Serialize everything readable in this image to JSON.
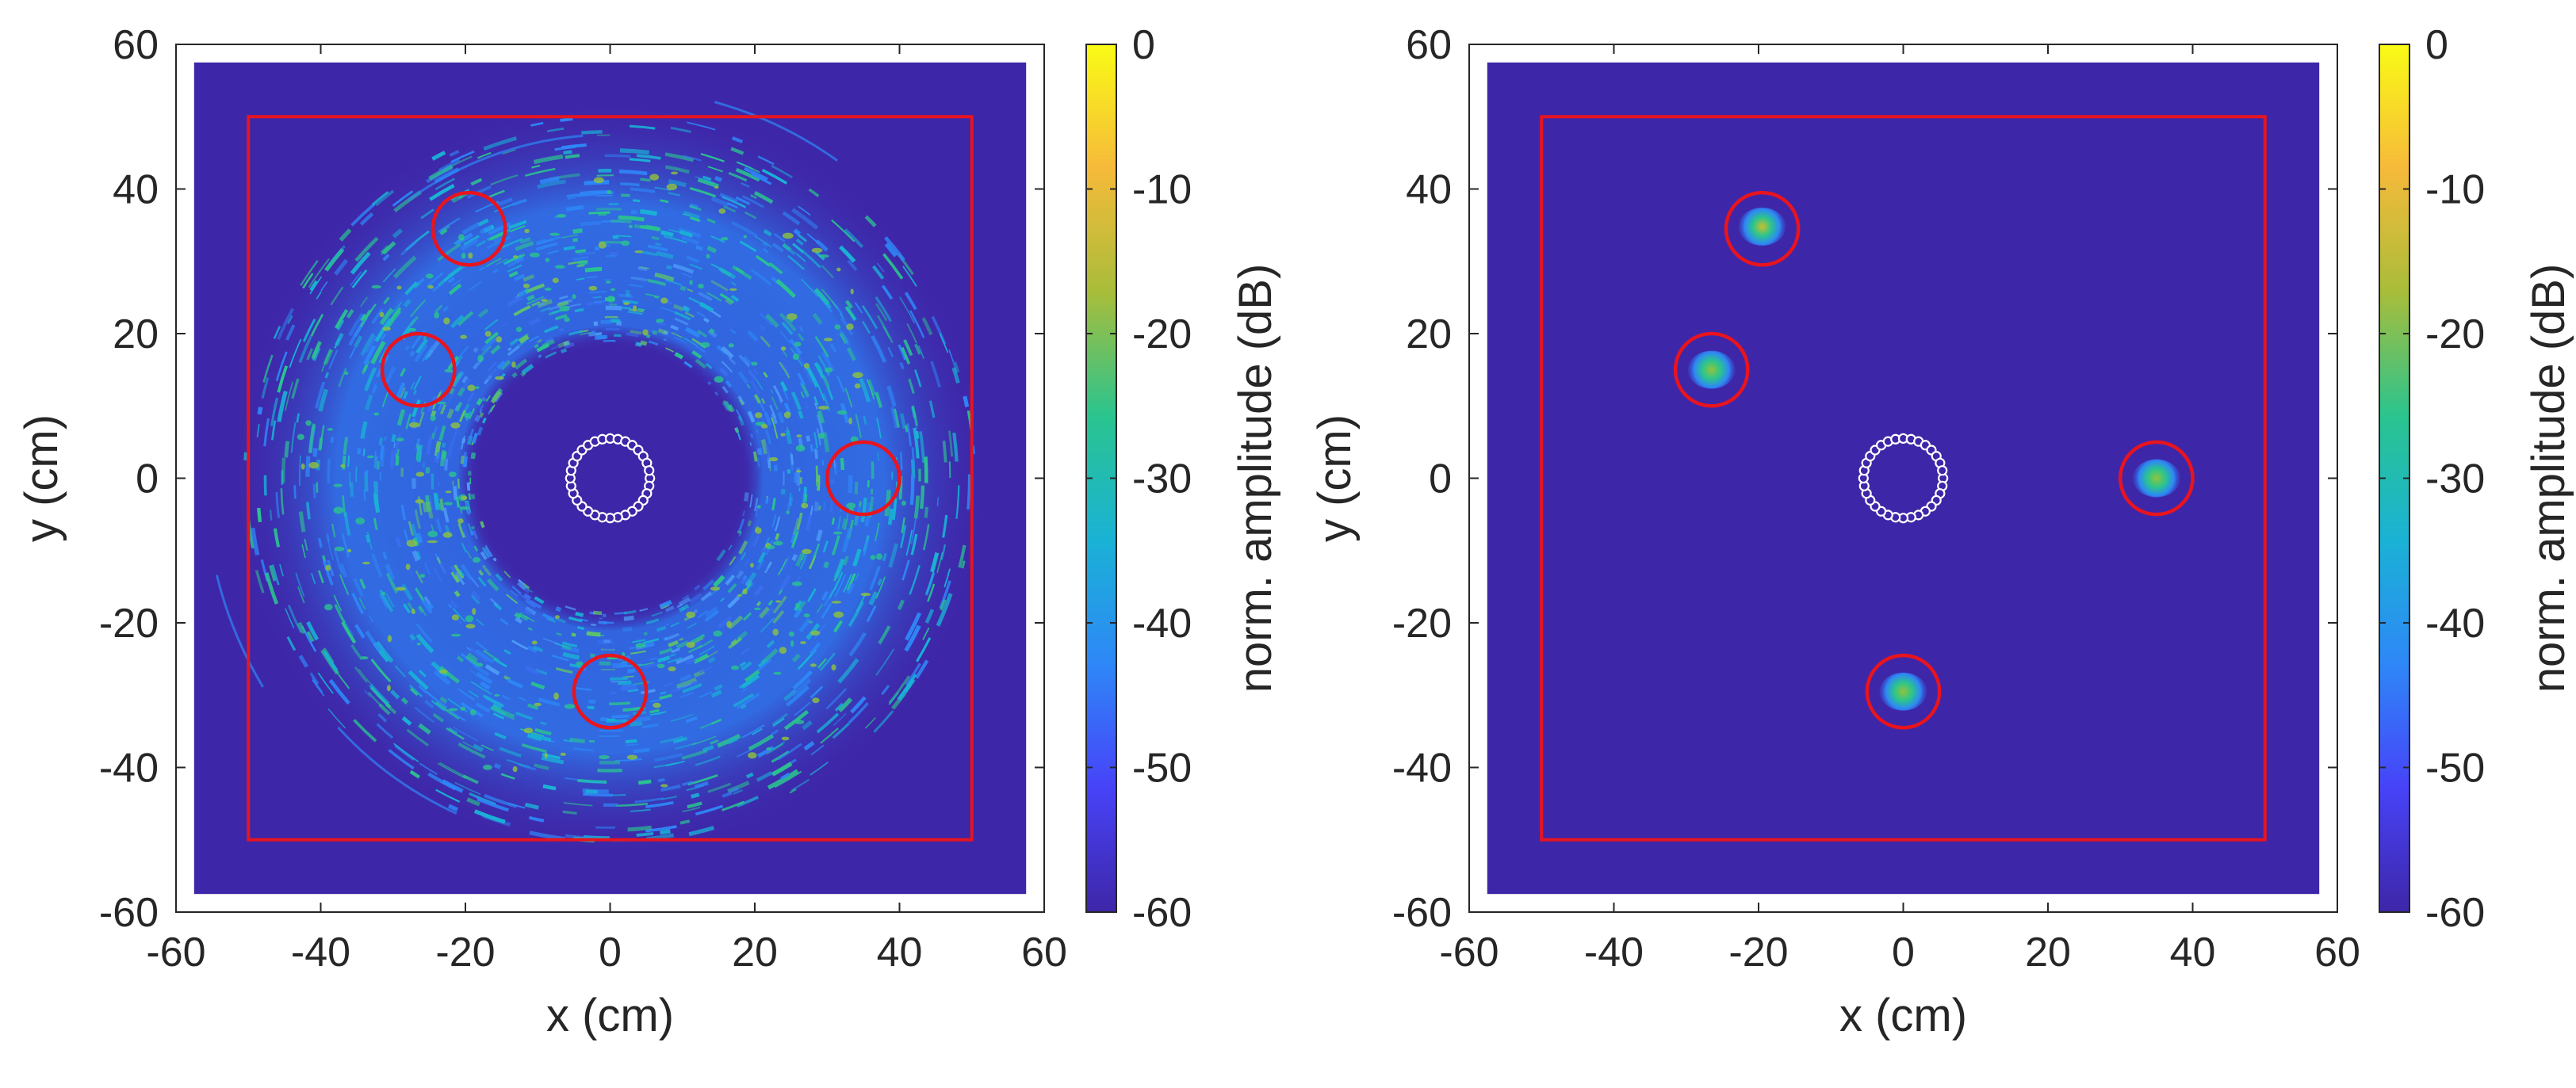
{
  "chart_data": [
    {
      "type": "heatmap",
      "panel": "left",
      "xlabel": "x (cm)",
      "ylabel": "y (cm)",
      "xlim": [
        -60,
        60
      ],
      "ylim": [
        -60,
        60
      ],
      "xticks": [
        "-60",
        "-40",
        "-20",
        "0",
        "20",
        "40",
        "60"
      ],
      "yticks": [
        "60",
        "40",
        "20",
        "0",
        "-20",
        "-40",
        "-60"
      ],
      "colorbar": {
        "label": "norm. amplitude (dB)",
        "range": [
          -60,
          0
        ],
        "ticks": [
          "0",
          "-10",
          "-20",
          "-30",
          "-40",
          "-50",
          "-60"
        ],
        "colormap": [
          "#3e26a8",
          "#4743f8",
          "#2e87f7",
          "#1ab2d5",
          "#2ac48f",
          "#a8bd3a",
          "#f6ba3a",
          "#f9fb15"
        ]
      },
      "image_extent": [
        -57.5,
        57.5
      ],
      "background_color": "#3e26a8",
      "image_description": "diffuse ring of speckle, inner radius ~18 cm, outer radius ~50 cm",
      "ring": {
        "inner_radius": 18,
        "outer_radius": 50
      },
      "roi_square": {
        "x": [
          -50,
          50
        ],
        "y": [
          -50,
          50
        ],
        "color": "#e8141e"
      },
      "target_circles": [
        {
          "x": -19.5,
          "y": 34.5,
          "r": 5
        },
        {
          "x": -26.5,
          "y": 15,
          "r": 5
        },
        {
          "x": 35,
          "y": 0,
          "r": 5
        },
        {
          "x": 0,
          "y": -29.5,
          "r": 5
        }
      ],
      "array_ring": {
        "x": 0,
        "y": 0,
        "r": 5.5,
        "elements": 32,
        "color": "#ffffff"
      }
    },
    {
      "type": "heatmap",
      "panel": "right",
      "xlabel": "x (cm)",
      "ylabel": "y (cm)",
      "xlim": [
        -60,
        60
      ],
      "ylim": [
        -60,
        60
      ],
      "xticks": [
        "-60",
        "-40",
        "-20",
        "0",
        "20",
        "40",
        "60"
      ],
      "yticks": [
        "60",
        "40",
        "20",
        "0",
        "-20",
        "-40",
        "-60"
      ],
      "colorbar": {
        "label": "norm. amplitude (dB)",
        "range": [
          -60,
          0
        ],
        "ticks": [
          "0",
          "-10",
          "-20",
          "-30",
          "-40",
          "-50",
          "-60"
        ],
        "colormap": [
          "#3e26a8",
          "#4743f8",
          "#2e87f7",
          "#1ab2d5",
          "#2ac48f",
          "#a8bd3a",
          "#f6ba3a",
          "#f9fb15"
        ]
      },
      "image_extent": [
        -57.5,
        57.5
      ],
      "background_color": "#3e26a8",
      "image_description": "four localized hot spots at the target positions, uniform background elsewhere",
      "roi_square": {
        "x": [
          -50,
          50
        ],
        "y": [
          -50,
          50
        ],
        "color": "#e8141e"
      },
      "target_circles": [
        {
          "x": -19.5,
          "y": 34.5,
          "r": 5
        },
        {
          "x": -26.5,
          "y": 15,
          "r": 5
        },
        {
          "x": 35,
          "y": 0,
          "r": 5
        },
        {
          "x": 0,
          "y": -29.5,
          "r": 5
        }
      ],
      "hotspots": [
        {
          "x": -19.5,
          "y": 34.8,
          "peak_db": -15
        },
        {
          "x": -26.5,
          "y": 15,
          "peak_db": -20
        },
        {
          "x": 35,
          "y": 0,
          "peak_db": -22
        },
        {
          "x": 0,
          "y": -29.5,
          "peak_db": -20
        }
      ],
      "array_ring": {
        "x": 0,
        "y": 0,
        "r": 5.5,
        "elements": 32,
        "color": "#ffffff"
      }
    }
  ]
}
